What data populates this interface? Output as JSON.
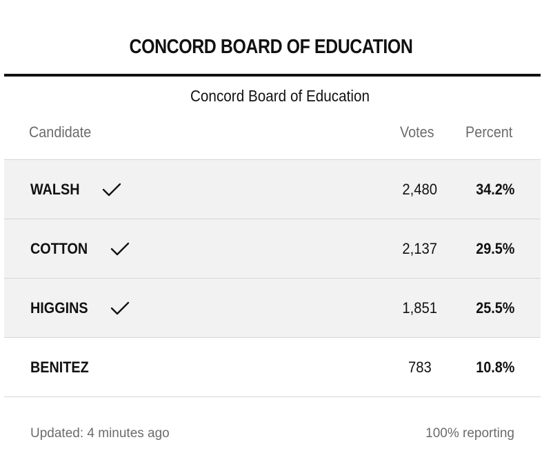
{
  "header": {
    "title": "CONCORD BOARD OF EDUCATION"
  },
  "race": {
    "name": "Concord Board of Education"
  },
  "columns": {
    "candidate": "Candidate",
    "votes": "Votes",
    "percent": "Percent"
  },
  "candidates": [
    {
      "name": "WALSH",
      "votes": "2,480",
      "percent": "34.2%",
      "winner": true,
      "icon": "check-icon"
    },
    {
      "name": "COTTON",
      "votes": "2,137",
      "percent": "29.5%",
      "winner": true,
      "icon": "check-icon"
    },
    {
      "name": "HIGGINS",
      "votes": "1,851",
      "percent": "25.5%",
      "winner": true,
      "icon": "check-icon"
    },
    {
      "name": "BENITEZ",
      "votes": "783",
      "percent": "10.8%",
      "winner": false
    }
  ],
  "footer": {
    "updated": "Updated: 4 minutes ago",
    "reporting": "100% reporting"
  },
  "colors": {
    "text": "#111111",
    "muted": "#6b6b6b",
    "winner_row_bg": "#f2f2f2",
    "divider": "#d6d6d6"
  }
}
